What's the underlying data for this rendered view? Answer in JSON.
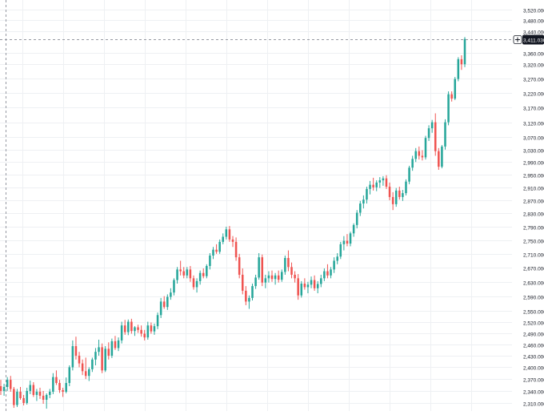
{
  "chart_data": {
    "type": "candlestick",
    "title": "",
    "xlabel": "",
    "ylabel": "",
    "ylim": [
      2290,
      3540
    ],
    "y_scale": "log",
    "grid": true,
    "legend": "none",
    "colors": {
      "up": "#26a69a",
      "down": "#ef5350",
      "grid": "#eef0f3",
      "label_box": "#131722",
      "crosshair": "#9598a1",
      "axis_text": "#131722"
    },
    "y_ticks": [
      "2,310.000",
      "2,340.000",
      "2,370.000",
      "2,400.000",
      "2,430.000",
      "2,460.000",
      "2,490.000",
      "2,520.000",
      "2,550.000",
      "2,590.000",
      "2,630.000",
      "2,670.000",
      "2,710.000",
      "2,750.000",
      "2,790.000",
      "2,830.000",
      "2,870.000",
      "2,910.000",
      "2,950.000",
      "2,990.000",
      "3,030.000",
      "3,070.000",
      "3,120.000",
      "3,170.000",
      "3,220.000",
      "3,270.000",
      "3,320.000",
      "3,360.000",
      "3,440.000",
      "3,480.000",
      "3,520.000"
    ],
    "last_price_label": "3,411.030",
    "last_price": 3411.03,
    "ohlc_fields": [
      "open",
      "high",
      "low",
      "close"
    ],
    "candles": [
      [
        2352,
        2368,
        2330,
        2340
      ],
      [
        2340,
        2358,
        2328,
        2350
      ],
      [
        2350,
        2375,
        2340,
        2368
      ],
      [
        2368,
        2378,
        2338,
        2345
      ],
      [
        2345,
        2350,
        2298,
        2305
      ],
      [
        2305,
        2345,
        2300,
        2338
      ],
      [
        2338,
        2350,
        2318,
        2322
      ],
      [
        2322,
        2330,
        2304,
        2310
      ],
      [
        2310,
        2348,
        2306,
        2340
      ],
      [
        2340,
        2366,
        2332,
        2355
      ],
      [
        2355,
        2362,
        2325,
        2330
      ],
      [
        2330,
        2345,
        2315,
        2338
      ],
      [
        2338,
        2348,
        2320,
        2328
      ],
      [
        2328,
        2340,
        2308,
        2318
      ],
      [
        2318,
        2334,
        2296,
        2330
      ],
      [
        2330,
        2345,
        2322,
        2338
      ],
      [
        2338,
        2385,
        2332,
        2375
      ],
      [
        2375,
        2392,
        2355,
        2360
      ],
      [
        2360,
        2368,
        2335,
        2342
      ],
      [
        2342,
        2348,
        2325,
        2338
      ],
      [
        2338,
        2374,
        2334,
        2360
      ],
      [
        2360,
        2405,
        2352,
        2400
      ],
      [
        2400,
        2470,
        2392,
        2455
      ],
      [
        2455,
        2480,
        2420,
        2430
      ],
      [
        2430,
        2440,
        2400,
        2410
      ],
      [
        2410,
        2420,
        2380,
        2390
      ],
      [
        2390,
        2425,
        2370,
        2378
      ],
      [
        2378,
        2400,
        2365,
        2395
      ],
      [
        2395,
        2425,
        2388,
        2420
      ],
      [
        2420,
        2450,
        2405,
        2440
      ],
      [
        2440,
        2472,
        2430,
        2452
      ],
      [
        2452,
        2462,
        2385,
        2392
      ],
      [
        2392,
        2455,
        2388,
        2448
      ],
      [
        2448,
        2465,
        2420,
        2430
      ],
      [
        2430,
        2475,
        2424,
        2468
      ],
      [
        2468,
        2482,
        2445,
        2450
      ],
      [
        2450,
        2478,
        2442,
        2470
      ],
      [
        2470,
        2520,
        2462,
        2510
      ],
      [
        2510,
        2525,
        2485,
        2492
      ],
      [
        2492,
        2526,
        2484,
        2520
      ],
      [
        2520,
        2528,
        2488,
        2495
      ],
      [
        2495,
        2508,
        2482,
        2505
      ],
      [
        2505,
        2512,
        2490,
        2498
      ],
      [
        2498,
        2510,
        2480,
        2488
      ],
      [
        2488,
        2498,
        2470,
        2478
      ],
      [
        2478,
        2520,
        2472,
        2510
      ],
      [
        2510,
        2518,
        2488,
        2494
      ],
      [
        2494,
        2515,
        2485,
        2508
      ],
      [
        2508,
        2545,
        2500,
        2538
      ],
      [
        2538,
        2585,
        2530,
        2575
      ],
      [
        2575,
        2590,
        2555,
        2560
      ],
      [
        2560,
        2595,
        2552,
        2588
      ],
      [
        2588,
        2612,
        2580,
        2600
      ],
      [
        2600,
        2640,
        2592,
        2635
      ],
      [
        2635,
        2672,
        2625,
        2665
      ],
      [
        2665,
        2690,
        2648,
        2660
      ],
      [
        2660,
        2672,
        2640,
        2648
      ],
      [
        2648,
        2672,
        2640,
        2665
      ],
      [
        2665,
        2675,
        2630,
        2640
      ],
      [
        2640,
        2648,
        2608,
        2615
      ],
      [
        2615,
        2640,
        2600,
        2632
      ],
      [
        2632,
        2662,
        2622,
        2655
      ],
      [
        2655,
        2668,
        2640,
        2646
      ],
      [
        2646,
        2680,
        2640,
        2675
      ],
      [
        2675,
        2712,
        2665,
        2705
      ],
      [
        2705,
        2730,
        2695,
        2722
      ],
      [
        2722,
        2738,
        2710,
        2716
      ],
      [
        2716,
        2752,
        2710,
        2745
      ],
      [
        2745,
        2770,
        2738,
        2760
      ],
      [
        2760,
        2790,
        2752,
        2782
      ],
      [
        2782,
        2792,
        2745,
        2752
      ],
      [
        2752,
        2762,
        2730,
        2745
      ],
      [
        2745,
        2758,
        2690,
        2700
      ],
      [
        2700,
        2710,
        2640,
        2650
      ],
      [
        2650,
        2668,
        2595,
        2605
      ],
      [
        2605,
        2618,
        2565,
        2575
      ],
      [
        2575,
        2592,
        2555,
        2585
      ],
      [
        2585,
        2625,
        2578,
        2618
      ],
      [
        2618,
        2650,
        2610,
        2642
      ],
      [
        2642,
        2712,
        2636,
        2700
      ],
      [
        2700,
        2708,
        2618,
        2628
      ],
      [
        2628,
        2650,
        2612,
        2640
      ],
      [
        2640,
        2660,
        2628,
        2648
      ],
      [
        2648,
        2662,
        2630,
        2638
      ],
      [
        2638,
        2655,
        2622,
        2648
      ],
      [
        2648,
        2662,
        2628,
        2636
      ],
      [
        2636,
        2665,
        2630,
        2658
      ],
      [
        2658,
        2705,
        2650,
        2698
      ],
      [
        2698,
        2720,
        2660,
        2672
      ],
      [
        2672,
        2685,
        2640,
        2650
      ],
      [
        2650,
        2660,
        2628,
        2640
      ],
      [
        2640,
        2652,
        2580,
        2592
      ],
      [
        2592,
        2632,
        2586,
        2625
      ],
      [
        2625,
        2640,
        2608,
        2615
      ],
      [
        2615,
        2630,
        2598,
        2622
      ],
      [
        2622,
        2645,
        2612,
        2635
      ],
      [
        2635,
        2648,
        2605,
        2612
      ],
      [
        2612,
        2632,
        2598,
        2624
      ],
      [
        2624,
        2650,
        2615,
        2640
      ],
      [
        2640,
        2668,
        2632,
        2660
      ],
      [
        2660,
        2680,
        2640,
        2648
      ],
      [
        2648,
        2672,
        2640,
        2665
      ],
      [
        2665,
        2700,
        2655,
        2690
      ],
      [
        2690,
        2712,
        2680,
        2702
      ],
      [
        2702,
        2745,
        2695,
        2738
      ],
      [
        2738,
        2762,
        2720,
        2748
      ],
      [
        2748,
        2768,
        2732,
        2740
      ],
      [
        2740,
        2775,
        2732,
        2770
      ],
      [
        2770,
        2800,
        2760,
        2795
      ],
      [
        2795,
        2840,
        2785,
        2832
      ],
      [
        2832,
        2868,
        2822,
        2860
      ],
      [
        2860,
        2885,
        2845,
        2872
      ],
      [
        2872,
        2912,
        2860,
        2905
      ],
      [
        2905,
        2930,
        2888,
        2918
      ],
      [
        2918,
        2940,
        2900,
        2910
      ],
      [
        2910,
        2932,
        2898,
        2925
      ],
      [
        2925,
        2942,
        2908,
        2932
      ],
      [
        2932,
        2945,
        2915,
        2938
      ],
      [
        2938,
        2948,
        2905,
        2912
      ],
      [
        2912,
        2925,
        2870,
        2880
      ],
      [
        2880,
        2895,
        2840,
        2858
      ],
      [
        2858,
        2908,
        2850,
        2900
      ],
      [
        2900,
        2912,
        2872,
        2880
      ],
      [
        2880,
        2902,
        2868,
        2892
      ],
      [
        2892,
        2935,
        2885,
        2928
      ],
      [
        2928,
        2978,
        2920,
        2972
      ],
      [
        2972,
        3010,
        2962,
        3000
      ],
      [
        3000,
        3035,
        2990,
        3025
      ],
      [
        3025,
        3040,
        2998,
        3010
      ],
      [
        3010,
        3028,
        2995,
        3005
      ],
      [
        3005,
        3075,
        2998,
        3068
      ],
      [
        3068,
        3110,
        3058,
        3100
      ],
      [
        3100,
        3128,
        3085,
        3120
      ],
      [
        3120,
        3150,
        3010,
        3025
      ],
      [
        3025,
        3035,
        2965,
        2975
      ],
      [
        2975,
        3045,
        2970,
        3040
      ],
      [
        3040,
        3130,
        3030,
        3120
      ],
      [
        3120,
        3225,
        3110,
        3215
      ],
      [
        3215,
        3225,
        3190,
        3200
      ],
      [
        3200,
        3275,
        3195,
        3268
      ],
      [
        3268,
        3345,
        3260,
        3338
      ],
      [
        3338,
        3352,
        3300,
        3320
      ],
      [
        3320,
        3418,
        3310,
        3411.03
      ]
    ]
  }
}
